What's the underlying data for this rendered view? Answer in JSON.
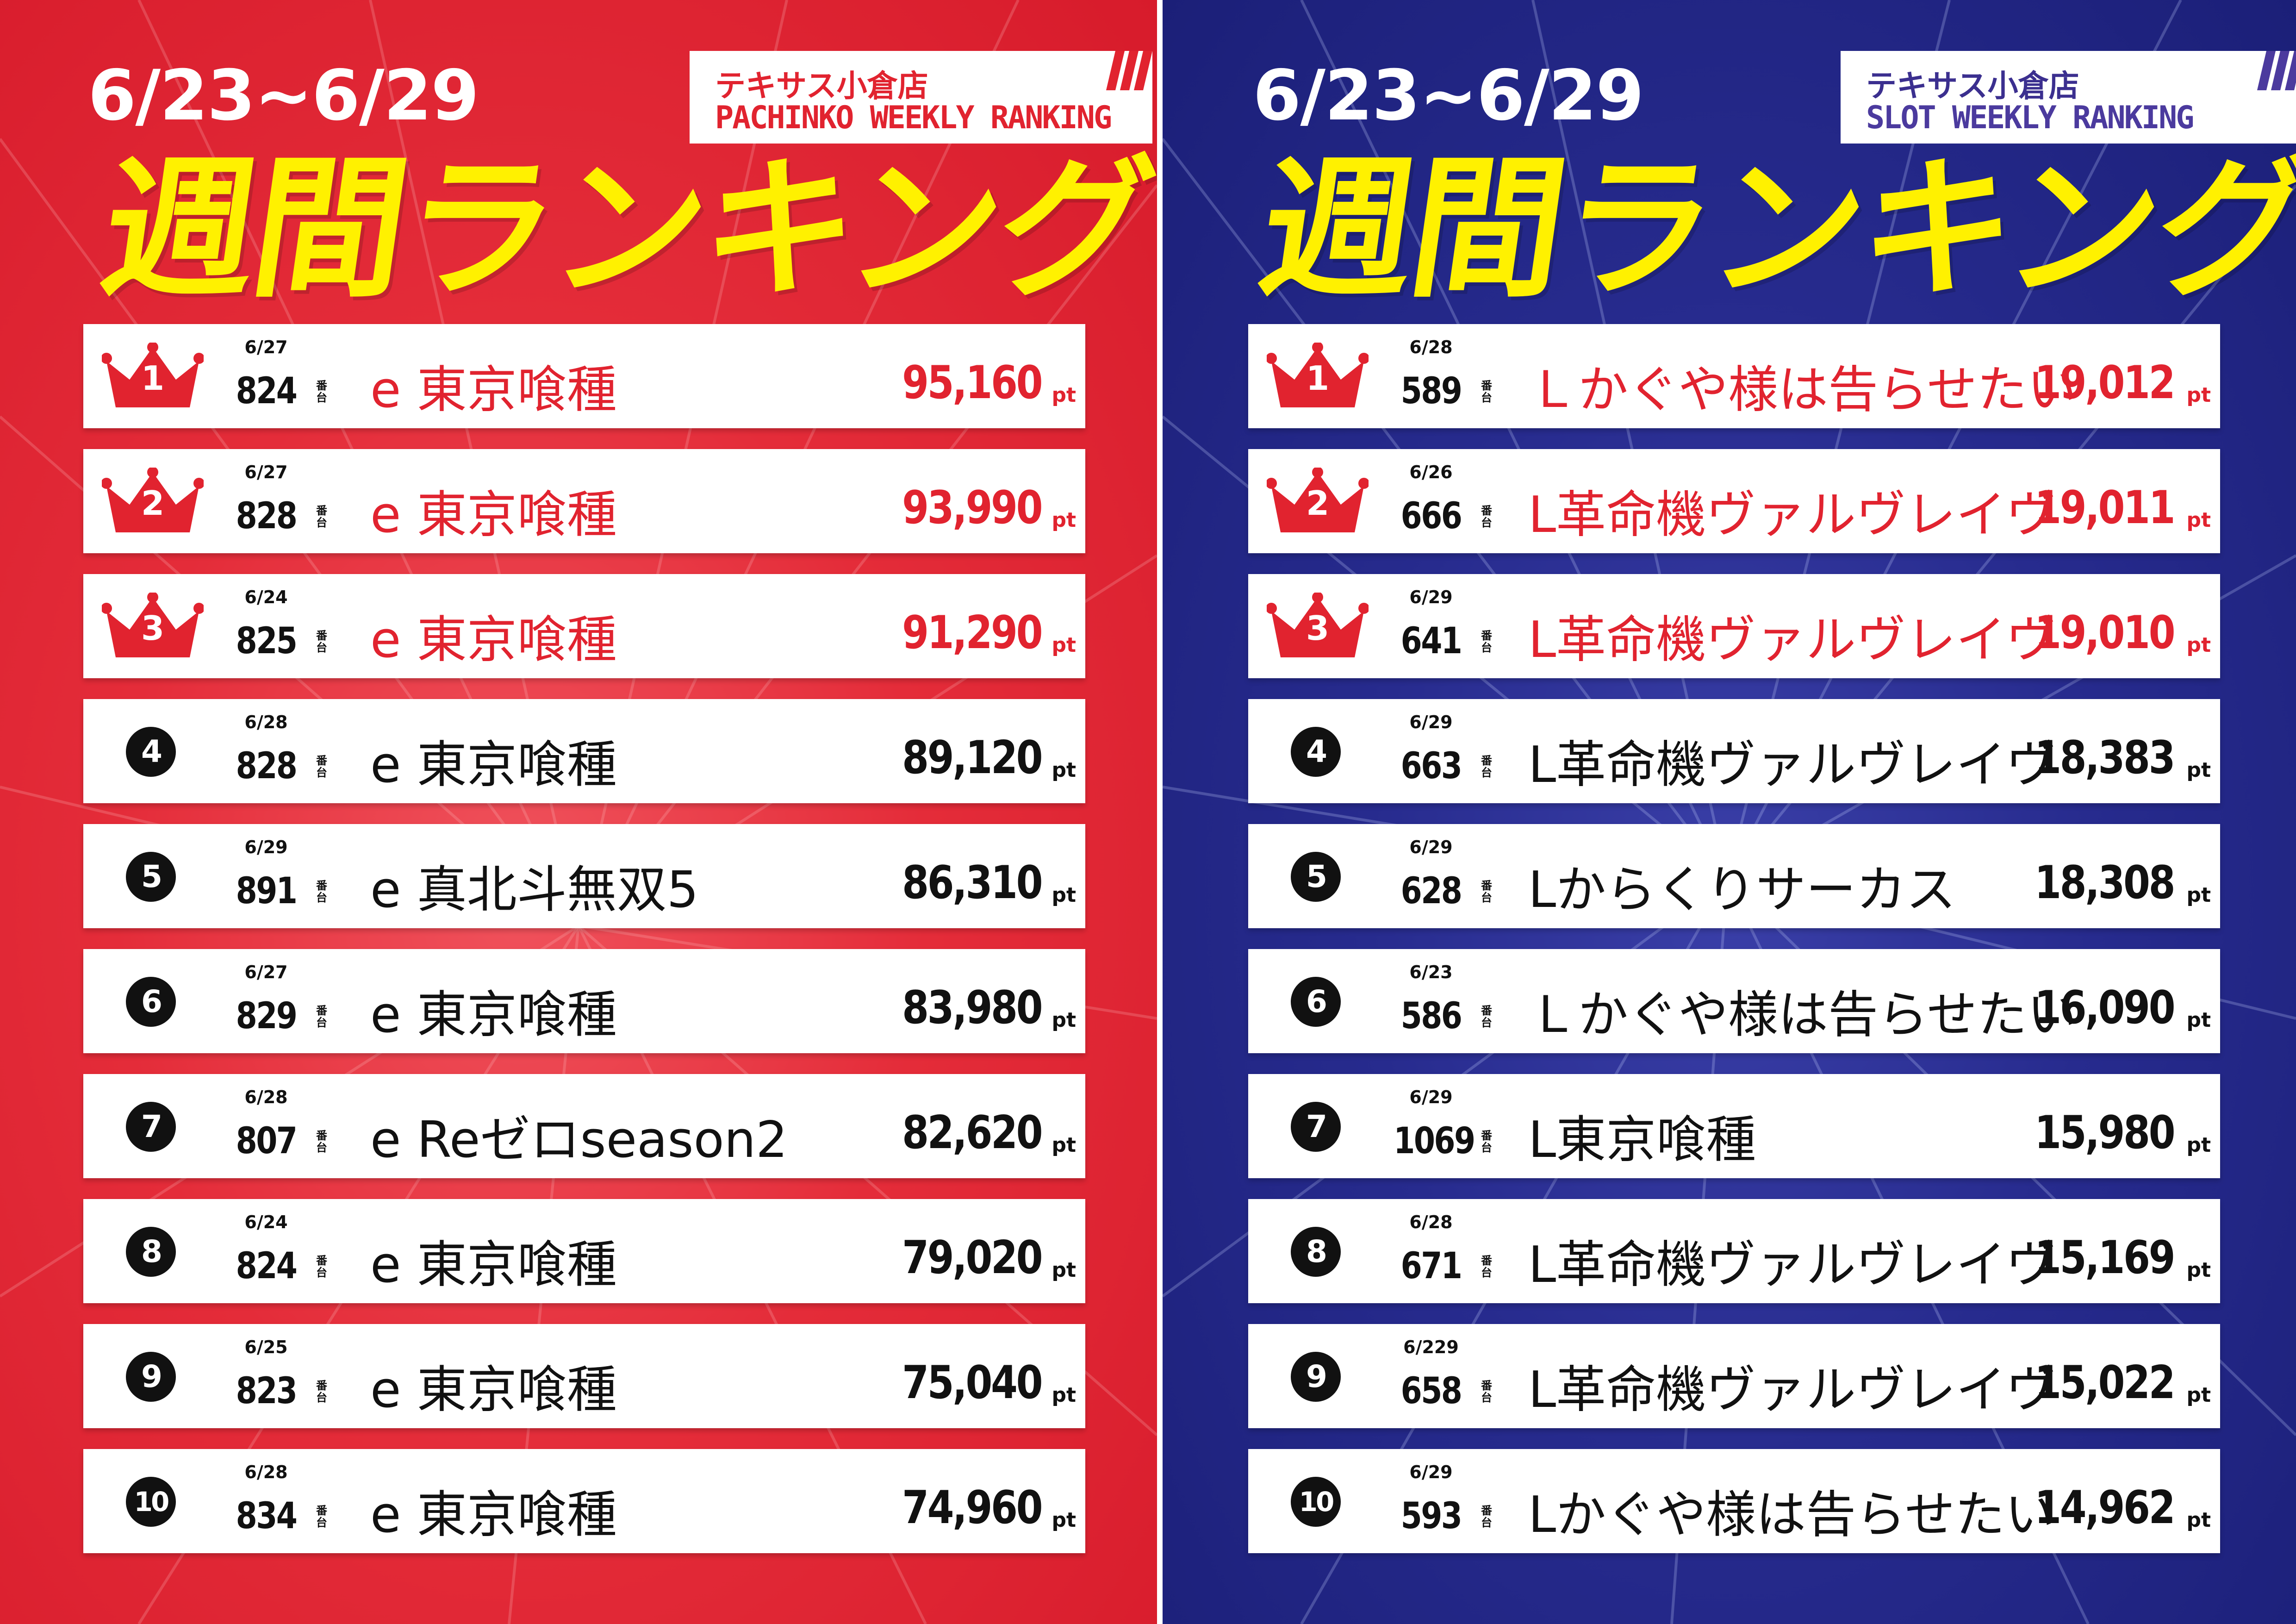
{
  "colors": {
    "pachinko_bg": "#e42c39",
    "slot_bg": "#272b8e",
    "title_yellow": "#fff100",
    "top3_red": "#e1232f",
    "slot_accent": "#4b3a9e"
  },
  "pachinko": {
    "date_range": "6/23~6/29",
    "store": "テキサス小倉店",
    "ranking_label": "PACHINKO WEEKLY RANKING",
    "title": "週間ランキング",
    "unit_bandai": "番台",
    "unit_pt": "pt",
    "rows": [
      {
        "rank": "1",
        "date": "6/27",
        "machine_no": "824",
        "name": "e 東京喰種",
        "score": "95,160"
      },
      {
        "rank": "2",
        "date": "6/27",
        "machine_no": "828",
        "name": "e 東京喰種",
        "score": "93,990"
      },
      {
        "rank": "3",
        "date": "6/24",
        "machine_no": "825",
        "name": "e 東京喰種",
        "score": "91,290"
      },
      {
        "rank": "4",
        "date": "6/28",
        "machine_no": "828",
        "name": "e 東京喰種",
        "score": "89,120"
      },
      {
        "rank": "5",
        "date": "6/29",
        "machine_no": "891",
        "name": "e 真北斗無双5",
        "score": "86,310"
      },
      {
        "rank": "6",
        "date": "6/27",
        "machine_no": "829",
        "name": "e 東京喰種",
        "score": "83,980"
      },
      {
        "rank": "7",
        "date": "6/28",
        "machine_no": "807",
        "name": "e Reゼロseason2",
        "score": "82,620"
      },
      {
        "rank": "8",
        "date": "6/24",
        "machine_no": "824",
        "name": "e 東京喰種",
        "score": "79,020"
      },
      {
        "rank": "9",
        "date": "6/25",
        "machine_no": "823",
        "name": "e 東京喰種",
        "score": "75,040"
      },
      {
        "rank": "10",
        "date": "6/28",
        "machine_no": "834",
        "name": "e 東京喰種",
        "score": "74,960"
      }
    ]
  },
  "slot": {
    "date_range": "6/23~6/29",
    "store": "テキサス小倉店",
    "ranking_label": "SLOT WEEKLY RANKING",
    "title": "週間ランキング",
    "unit_bandai": "番台",
    "unit_pt": "pt",
    "rows": [
      {
        "rank": "1",
        "date": "6/28",
        "machine_no": "589",
        "name": "Ｌかぐや様は告らせたい",
        "score": "19,012"
      },
      {
        "rank": "2",
        "date": "6/26",
        "machine_no": "666",
        "name": "L革命機ヴァルヴレイヴ",
        "score": "19,011"
      },
      {
        "rank": "3",
        "date": "6/29",
        "machine_no": "641",
        "name": "L革命機ヴァルヴレイヴ",
        "score": "19,010"
      },
      {
        "rank": "4",
        "date": "6/29",
        "machine_no": "663",
        "name": "L革命機ヴァルヴレイヴ",
        "score": "18,383"
      },
      {
        "rank": "5",
        "date": "6/29",
        "machine_no": "628",
        "name": "Lからくりサーカス",
        "score": "18,308"
      },
      {
        "rank": "6",
        "date": "6/23",
        "machine_no": "586",
        "name": "Ｌかぐや様は告らせたい",
        "score": "16,090"
      },
      {
        "rank": "7",
        "date": "6/29",
        "machine_no": "1069",
        "name": "L東京喰種",
        "score": "15,980"
      },
      {
        "rank": "8",
        "date": "6/28",
        "machine_no": "671",
        "name": "L革命機ヴァルヴレイヴ",
        "score": "15,169"
      },
      {
        "rank": "9",
        "date": "6/229",
        "machine_no": "658",
        "name": "L革命機ヴァルヴレイヴ",
        "score": "15,022"
      },
      {
        "rank": "10",
        "date": "6/29",
        "machine_no": "593",
        "name": "Lかぐや様は告らせたい",
        "score": "14,962"
      }
    ]
  }
}
